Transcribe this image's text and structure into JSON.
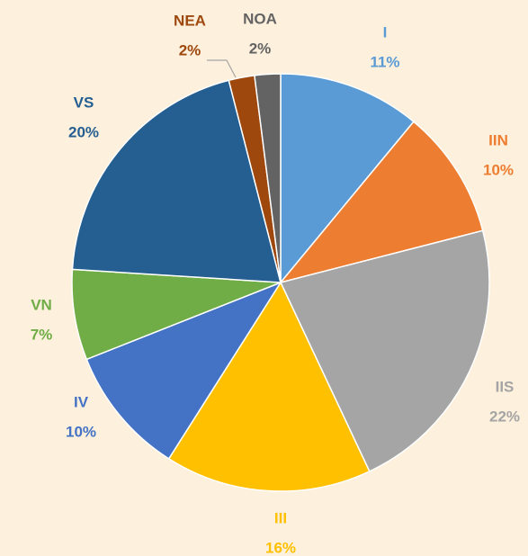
{
  "chart_data": {
    "type": "pie",
    "categories": [
      "I",
      "IIN",
      "IIS",
      "III",
      "IV",
      "VN",
      "VS",
      "NEA",
      "NOA"
    ],
    "values": [
      11,
      10,
      22,
      16,
      10,
      7,
      20,
      2,
      2
    ],
    "value_labels": [
      "11%",
      "10%",
      "22%",
      "16%",
      "10%",
      "7%",
      "20%",
      "2%",
      "2%"
    ],
    "colors": [
      "#5b9bd5",
      "#ed7d31",
      "#a5a5a5",
      "#ffc000",
      "#4472c4",
      "#70ad47",
      "#255e91",
      "#9e480e",
      "#636363"
    ]
  }
}
